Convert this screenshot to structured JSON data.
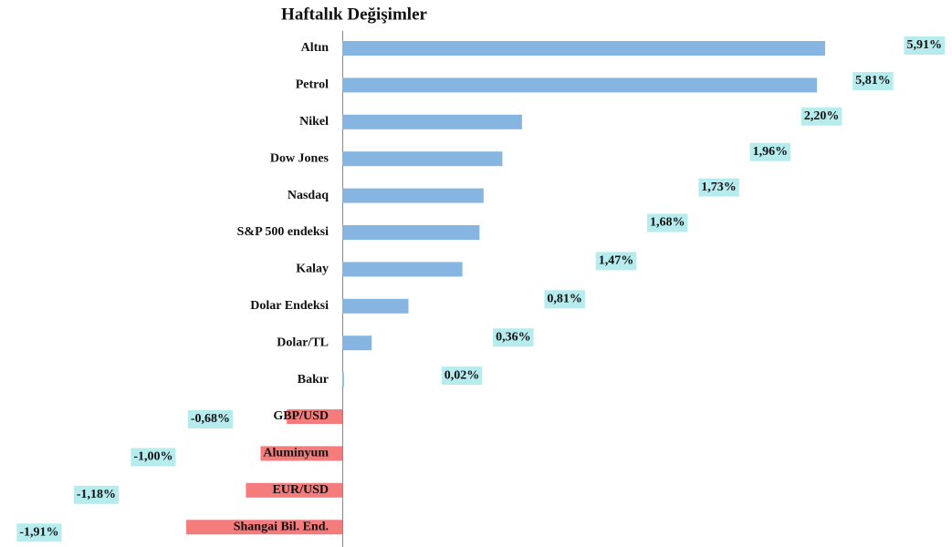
{
  "chart_data": {
    "type": "bar",
    "orientation": "horizontal",
    "title": "Haftalık Değişimler",
    "categories": [
      "Altın",
      "Petrol",
      "Nikel",
      "Dow Jones",
      "Nasdaq",
      "S&P 500 endeksi",
      "Kalay",
      "Dolar Endeksi",
      "Dolar/TL",
      "Bakır",
      "GBP/USD",
      "Aluminyum",
      "EUR/USD",
      "Shangai Bil. End."
    ],
    "values": [
      5.91,
      5.81,
      2.2,
      1.96,
      1.73,
      1.68,
      1.47,
      0.81,
      0.36,
      0.02,
      -0.68,
      -1.0,
      -1.18,
      -1.91
    ],
    "value_labels": [
      "5,91%",
      "5,81%",
      "2,20%",
      "1,96%",
      "1,73%",
      "1,68%",
      "1,47%",
      "0,81%",
      "0,36%",
      "0,02%",
      "-0,68%",
      "-1,00%",
      "-1,18%",
      "-1,91%"
    ],
    "color": "#85b5e0",
    "negative_color": "#f47c7c",
    "label_background": "#b7ecef"
  }
}
